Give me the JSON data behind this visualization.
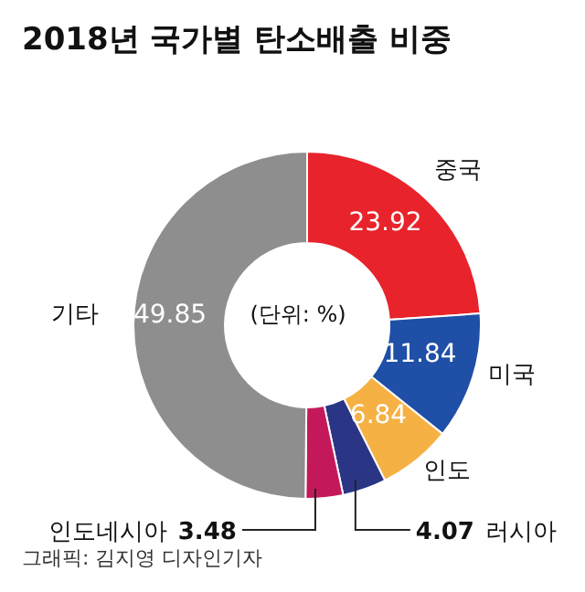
{
  "chart_data": {
    "type": "donut",
    "title": "2018년 국가별 탄소배출 비중",
    "categories": [
      "중국",
      "미국",
      "인도",
      "러시아",
      "인도네시아",
      "기타"
    ],
    "values": [
      23.92,
      11.84,
      6.84,
      4.07,
      3.48,
      49.85
    ],
    "colors": [
      "#e8232b",
      "#1f4fa6",
      "#f6b144",
      "#2b3585",
      "#c3195a",
      "#8e8e8e"
    ],
    "data_labels": true,
    "legend": false,
    "annotations": [
      "(단위: %)",
      "그래픽: 김지영 디자인기자"
    ]
  }
}
